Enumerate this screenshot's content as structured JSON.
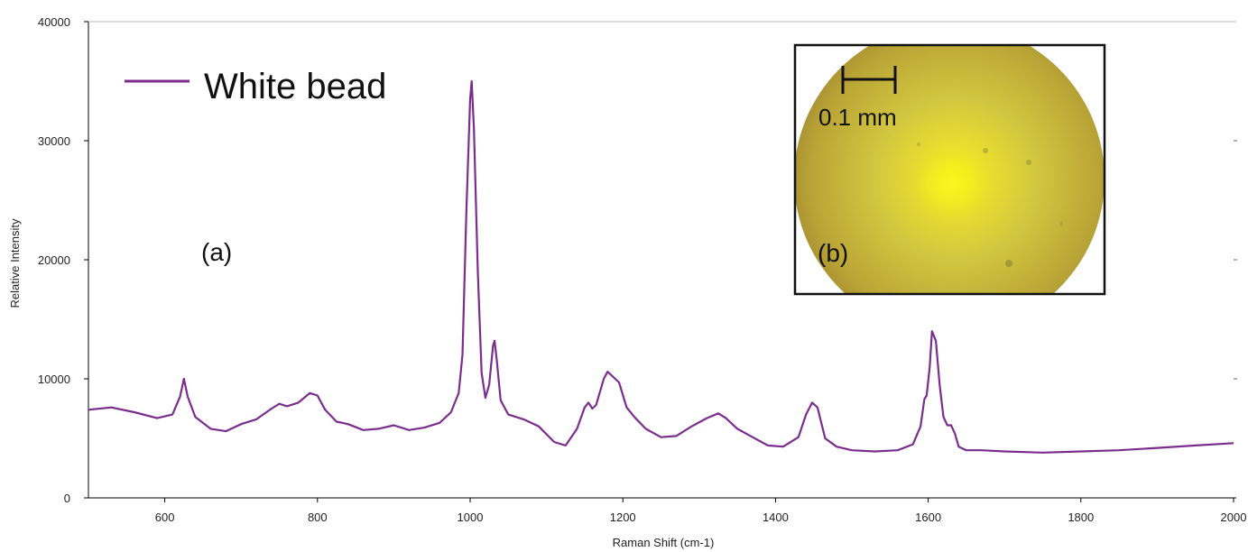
{
  "chart_data": {
    "type": "line",
    "xlabel": "Raman Shift (cm-1)",
    "ylabel": "Relative Intensity",
    "xlim": [
      500,
      2000
    ],
    "ylim": [
      0,
      40000
    ],
    "x_ticks": [
      600,
      800,
      1000,
      1200,
      1400,
      1600,
      1800,
      2000
    ],
    "x_tick_labels": [
      "600",
      "800",
      "1000",
      "1200",
      "1400",
      "1600",
      "1800",
      "2000"
    ],
    "y_ticks": [
      0,
      10000,
      20000,
      30000,
      40000
    ],
    "y_tick_labels": [
      "0",
      "10000",
      "20000",
      "30000",
      "40000"
    ],
    "grid": false,
    "legend_position": "top-left",
    "series": [
      {
        "name": "White bead",
        "color": "#7b2d8e",
        "x": [
          500,
          530,
          560,
          590,
          610,
          620,
          625,
          630,
          640,
          660,
          680,
          700,
          720,
          740,
          750,
          760,
          775,
          790,
          800,
          810,
          825,
          840,
          860,
          880,
          900,
          920,
          940,
          960,
          975,
          985,
          990,
          995,
          1000,
          1002,
          1005,
          1010,
          1015,
          1020,
          1025,
          1030,
          1032,
          1035,
          1040,
          1050,
          1070,
          1090,
          1110,
          1125,
          1140,
          1150,
          1155,
          1160,
          1165,
          1175,
          1180,
          1185,
          1195,
          1205,
          1215,
          1230,
          1250,
          1270,
          1290,
          1310,
          1325,
          1335,
          1350,
          1370,
          1390,
          1410,
          1430,
          1440,
          1448,
          1455,
          1465,
          1480,
          1500,
          1530,
          1560,
          1580,
          1590,
          1595,
          1598,
          1602,
          1605,
          1610,
          1615,
          1620,
          1625,
          1630,
          1635,
          1640,
          1650,
          1670,
          1700,
          1750,
          1800,
          1850,
          1900,
          1950,
          2000
        ],
        "y": [
          7400,
          7600,
          7200,
          6700,
          7000,
          8500,
          10000,
          8500,
          6800,
          5800,
          5600,
          6200,
          6600,
          7500,
          7900,
          7700,
          8000,
          8800,
          8600,
          7400,
          6400,
          6200,
          5700,
          5800,
          6100,
          5700,
          5900,
          6300,
          7200,
          8800,
          12000,
          24000,
          33500,
          35000,
          31000,
          19000,
          10500,
          8400,
          9500,
          12800,
          13200,
          11500,
          8200,
          7000,
          6600,
          6000,
          4700,
          4400,
          5800,
          7600,
          8000,
          7500,
          7800,
          10000,
          10600,
          10300,
          9700,
          7600,
          6800,
          5800,
          5100,
          5200,
          6000,
          6700,
          7100,
          6700,
          5800,
          5100,
          4400,
          4300,
          5100,
          7000,
          8000,
          7600,
          5000,
          4300,
          4000,
          3900,
          4000,
          4500,
          6000,
          8300,
          8600,
          11000,
          14000,
          13200,
          9500,
          6800,
          6100,
          6100,
          5400,
          4300,
          4000,
          4000,
          3900,
          3800,
          3900,
          4000,
          4200,
          4400,
          4600
        ]
      }
    ]
  },
  "panel_a_label": "(a)",
  "inset": {
    "label": "(b)",
    "scale_bar_text": "0.1 mm"
  }
}
